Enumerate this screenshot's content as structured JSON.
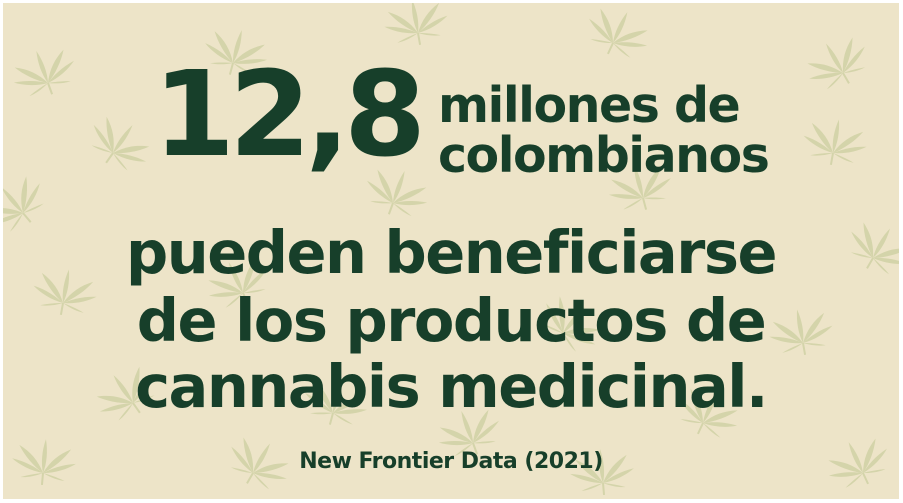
{
  "headline": {
    "number": "12,8",
    "number_suffix_line1": "millones de",
    "number_suffix_line2": "colombianos",
    "body_line1": "pueden beneficiarse",
    "body_line2": "de los productos de",
    "body_line3": "cannabis medicinal."
  },
  "source": "New Frontier Data (2021)",
  "background": {
    "color": "#ede4c8",
    "pattern_icon": "cannabis-leaf-icon",
    "pattern_color": "#cfd1a4"
  },
  "text_color": "#173f2a"
}
